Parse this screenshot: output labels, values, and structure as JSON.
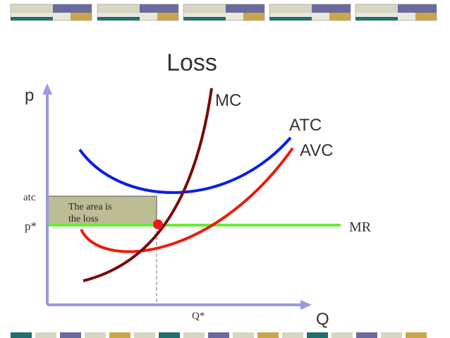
{
  "title": "Loss",
  "axes": {
    "y": "p",
    "x": "Q"
  },
  "curves": {
    "mc": "MC",
    "atc": "ATC",
    "avc": "AVC",
    "mr": "MR"
  },
  "levels": {
    "atc": "atc",
    "price": "p*",
    "quantity": "Q*"
  },
  "annotation": [
    "The area is",
    "the loss"
  ]
}
